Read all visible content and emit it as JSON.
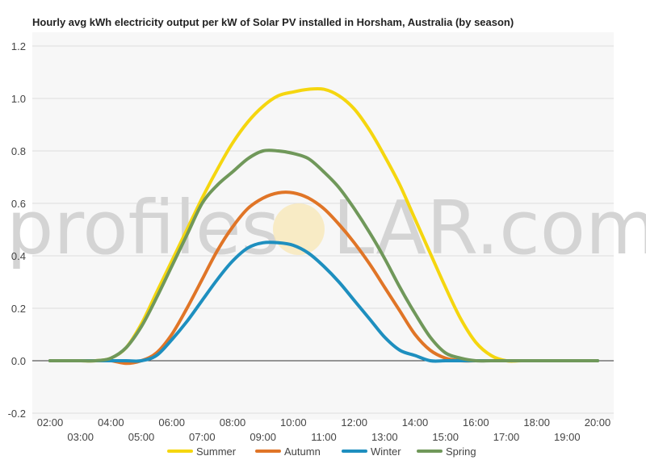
{
  "chart_data": {
    "type": "line",
    "title": "Hourly avg kWh electricity output per kW of Solar PV installed in Horsham, Australia (by season)",
    "xlabel": "",
    "ylabel": "",
    "ylim": [
      -0.2,
      1.2
    ],
    "yticks": [
      "1.2",
      "1.0",
      "0.8",
      "0.6",
      "0.4",
      "0.2",
      "0.0",
      "-0.2"
    ],
    "ytick_values": [
      1.2,
      1.0,
      0.8,
      0.6,
      0.4,
      0.2,
      0.0,
      -0.2
    ],
    "x": [
      2,
      2.5,
      3,
      3.5,
      4,
      4.5,
      5,
      5.5,
      6,
      6.5,
      7,
      7.5,
      8,
      8.5,
      9,
      9.5,
      10,
      10.5,
      11,
      11.5,
      12,
      12.5,
      13,
      13.5,
      14,
      14.5,
      15,
      15.5,
      16,
      16.5,
      17,
      17.5,
      18,
      18.5,
      19,
      19.5,
      20
    ],
    "xticks_top": [
      "02:00",
      "04:00",
      "06:00",
      "08:00",
      "10:00",
      "12:00",
      "14:00",
      "16:00",
      "18:00",
      "20:00"
    ],
    "xticks_top_values": [
      2,
      4,
      6,
      8,
      10,
      12,
      14,
      16,
      18,
      20
    ],
    "xticks_bottom": [
      "03:00",
      "05:00",
      "07:00",
      "09:00",
      "11:00",
      "13:00",
      "15:00",
      "17:00",
      "19:00"
    ],
    "xticks_bottom_values": [
      3,
      5,
      7,
      9,
      11,
      13,
      15,
      17,
      19
    ],
    "grid": true,
    "legend_position": "bottom",
    "series": [
      {
        "name": "Summer",
        "color": "#f5d60f",
        "values": [
          0,
          0,
          0,
          0,
          0.01,
          0.05,
          0.14,
          0.26,
          0.38,
          0.5,
          0.62,
          0.73,
          0.83,
          0.91,
          0.97,
          1.01,
          1.025,
          1.035,
          1.035,
          1.01,
          0.96,
          0.88,
          0.78,
          0.67,
          0.54,
          0.41,
          0.28,
          0.16,
          0.07,
          0.02,
          0,
          0,
          0,
          0,
          0,
          0,
          0
        ]
      },
      {
        "name": "Autumn",
        "color": "#e07527",
        "values": [
          0,
          0,
          0,
          0,
          0,
          -0.01,
          0,
          0.03,
          0.1,
          0.2,
          0.31,
          0.42,
          0.51,
          0.58,
          0.62,
          0.64,
          0.64,
          0.62,
          0.58,
          0.52,
          0.45,
          0.37,
          0.28,
          0.19,
          0.1,
          0.04,
          0.01,
          0,
          0,
          0,
          0,
          0,
          0,
          0,
          0,
          0,
          0
        ]
      },
      {
        "name": "Winter",
        "color": "#1e8fbf",
        "values": [
          0,
          0,
          0,
          0,
          0,
          0,
          0,
          0.02,
          0.08,
          0.15,
          0.23,
          0.31,
          0.38,
          0.43,
          0.45,
          0.45,
          0.44,
          0.41,
          0.36,
          0.3,
          0.23,
          0.16,
          0.09,
          0.04,
          0.02,
          0,
          0,
          0,
          0,
          0,
          0,
          0,
          0,
          0,
          0,
          0,
          0
        ]
      },
      {
        "name": "Spring",
        "color": "#70985a",
        "values": [
          0,
          0,
          0,
          0,
          0.01,
          0.05,
          0.13,
          0.24,
          0.36,
          0.48,
          0.6,
          0.67,
          0.72,
          0.77,
          0.8,
          0.8,
          0.79,
          0.77,
          0.72,
          0.66,
          0.58,
          0.49,
          0.39,
          0.28,
          0.18,
          0.09,
          0.03,
          0.01,
          0,
          0,
          0,
          0,
          0,
          0,
          0,
          0,
          0
        ]
      }
    ]
  },
  "watermark": {
    "left": "profiles",
    "right": "LAR.com"
  }
}
